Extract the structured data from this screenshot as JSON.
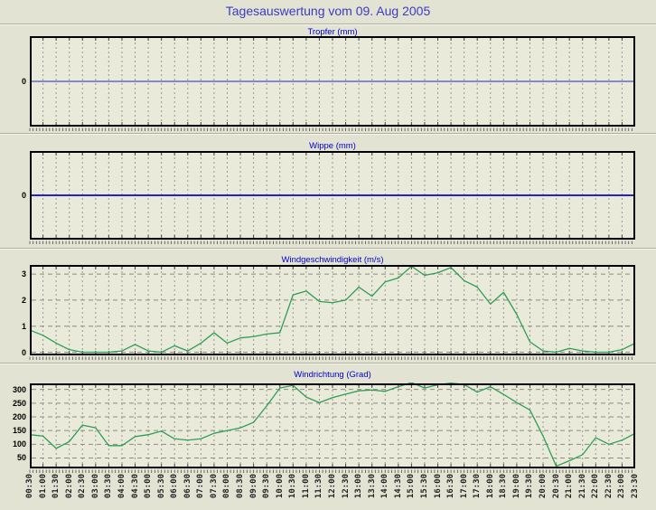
{
  "page": {
    "title": "Tagesauswertung vom 09. Aug 2005",
    "colors": {
      "background": "#e3e3d4",
      "plot_background": "#eaeadb",
      "main_title_blue": "#3b3bc0",
      "panel_title_blue": "#0000cd",
      "zero_line_blue": "#2323cb",
      "series_green": "#2f9e55",
      "grid_gray": "#98988c",
      "frame_black": "#000000"
    }
  },
  "chart_data": [
    {
      "type": "line",
      "title": "Tropfer (mm)",
      "yticks": [
        0
      ],
      "ylim": [
        -1,
        1
      ],
      "values_constant": 0,
      "note": "flat blue horizontal line at 0 for the whole day, no precipitation drops recorded",
      "line_color": "#2323cb",
      "categories_note": "same 47 half-hour timestamps 00:30-23:30 as wind charts"
    },
    {
      "type": "line",
      "title": "Wippe (mm)",
      "yticks": [
        0
      ],
      "ylim": [
        -1,
        1
      ],
      "values_constant": 0,
      "note": "flat blue horizontal line at 0 for the whole day, no tipping-bucket rain recorded",
      "line_color": "#2323cb",
      "categories_note": "same 47 half-hour timestamps 00:30-23:30 as wind charts"
    },
    {
      "type": "line",
      "title": "Windgeschwindigkeit (m/s)",
      "yticks": [
        0,
        1,
        2,
        3
      ],
      "ylim": [
        -0.12,
        3.35
      ],
      "line_color": "#2f9e55",
      "categories": [
        "00:30",
        "01:00",
        "01:30",
        "02:00",
        "02:30",
        "03:00",
        "03:30",
        "04:00",
        "04:30",
        "05:00",
        "05:30",
        "06:00",
        "06:30",
        "07:00",
        "07:30",
        "08:00",
        "08:30",
        "09:00",
        "09:30",
        "10:00",
        "10:30",
        "11:00",
        "11:30",
        "12:00",
        "12:30",
        "13:00",
        "13:30",
        "14:00",
        "14:30",
        "15:00",
        "15:30",
        "16:00",
        "16:30",
        "17:00",
        "17:30",
        "18:00",
        "18:30",
        "19:00",
        "19:30",
        "20:00",
        "20:30",
        "21:00",
        "21:30",
        "22:00",
        "22:30",
        "23:00",
        "23:30"
      ],
      "values": [
        0.85,
        0.65,
        0.35,
        0.1,
        0,
        0,
        0,
        0.05,
        0.3,
        0.05,
        0,
        0.25,
        0.05,
        0.35,
        0.75,
        0.35,
        0.55,
        0.6,
        0.7,
        0.75,
        2.2,
        2.35,
        1.95,
        1.9,
        2.0,
        2.5,
        2.15,
        2.7,
        2.85,
        3.3,
        2.95,
        3.05,
        3.25,
        2.75,
        2.5,
        1.85,
        2.3,
        1.45,
        0.4,
        0.05,
        0,
        0.15,
        0.05,
        0,
        0,
        0.1,
        0.35
      ]
    },
    {
      "type": "line",
      "title": "Windrichtung (Grad)",
      "yticks": [
        50,
        100,
        150,
        200,
        250,
        300
      ],
      "ylim": [
        12,
        322
      ],
      "line_color": "#2f9e55",
      "categories": [
        "00:30",
        "01:00",
        "01:30",
        "02:00",
        "02:30",
        "03:00",
        "03:30",
        "04:00",
        "04:30",
        "05:00",
        "05:30",
        "06:00",
        "06:30",
        "07:00",
        "07:30",
        "08:00",
        "08:30",
        "09:00",
        "09:30",
        "10:00",
        "10:30",
        "11:00",
        "11:30",
        "12:00",
        "12:30",
        "13:00",
        "13:30",
        "14:00",
        "14:30",
        "15:00",
        "15:30",
        "16:00",
        "16:30",
        "17:00",
        "17:30",
        "18:00",
        "18:30",
        "19:00",
        "19:30",
        "20:00",
        "20:30",
        "21:00",
        "21:30",
        "22:00",
        "22:30",
        "23:00",
        "23:30"
      ],
      "values": [
        135,
        130,
        85,
        110,
        170,
        160,
        95,
        95,
        128,
        135,
        148,
        120,
        115,
        120,
        140,
        150,
        160,
        180,
        240,
        305,
        315,
        272,
        252,
        270,
        283,
        295,
        298,
        293,
        310,
        325,
        305,
        317,
        323,
        318,
        290,
        310,
        282,
        252,
        225,
        130,
        20,
        40,
        62,
        124,
        100,
        115,
        140
      ]
    }
  ]
}
